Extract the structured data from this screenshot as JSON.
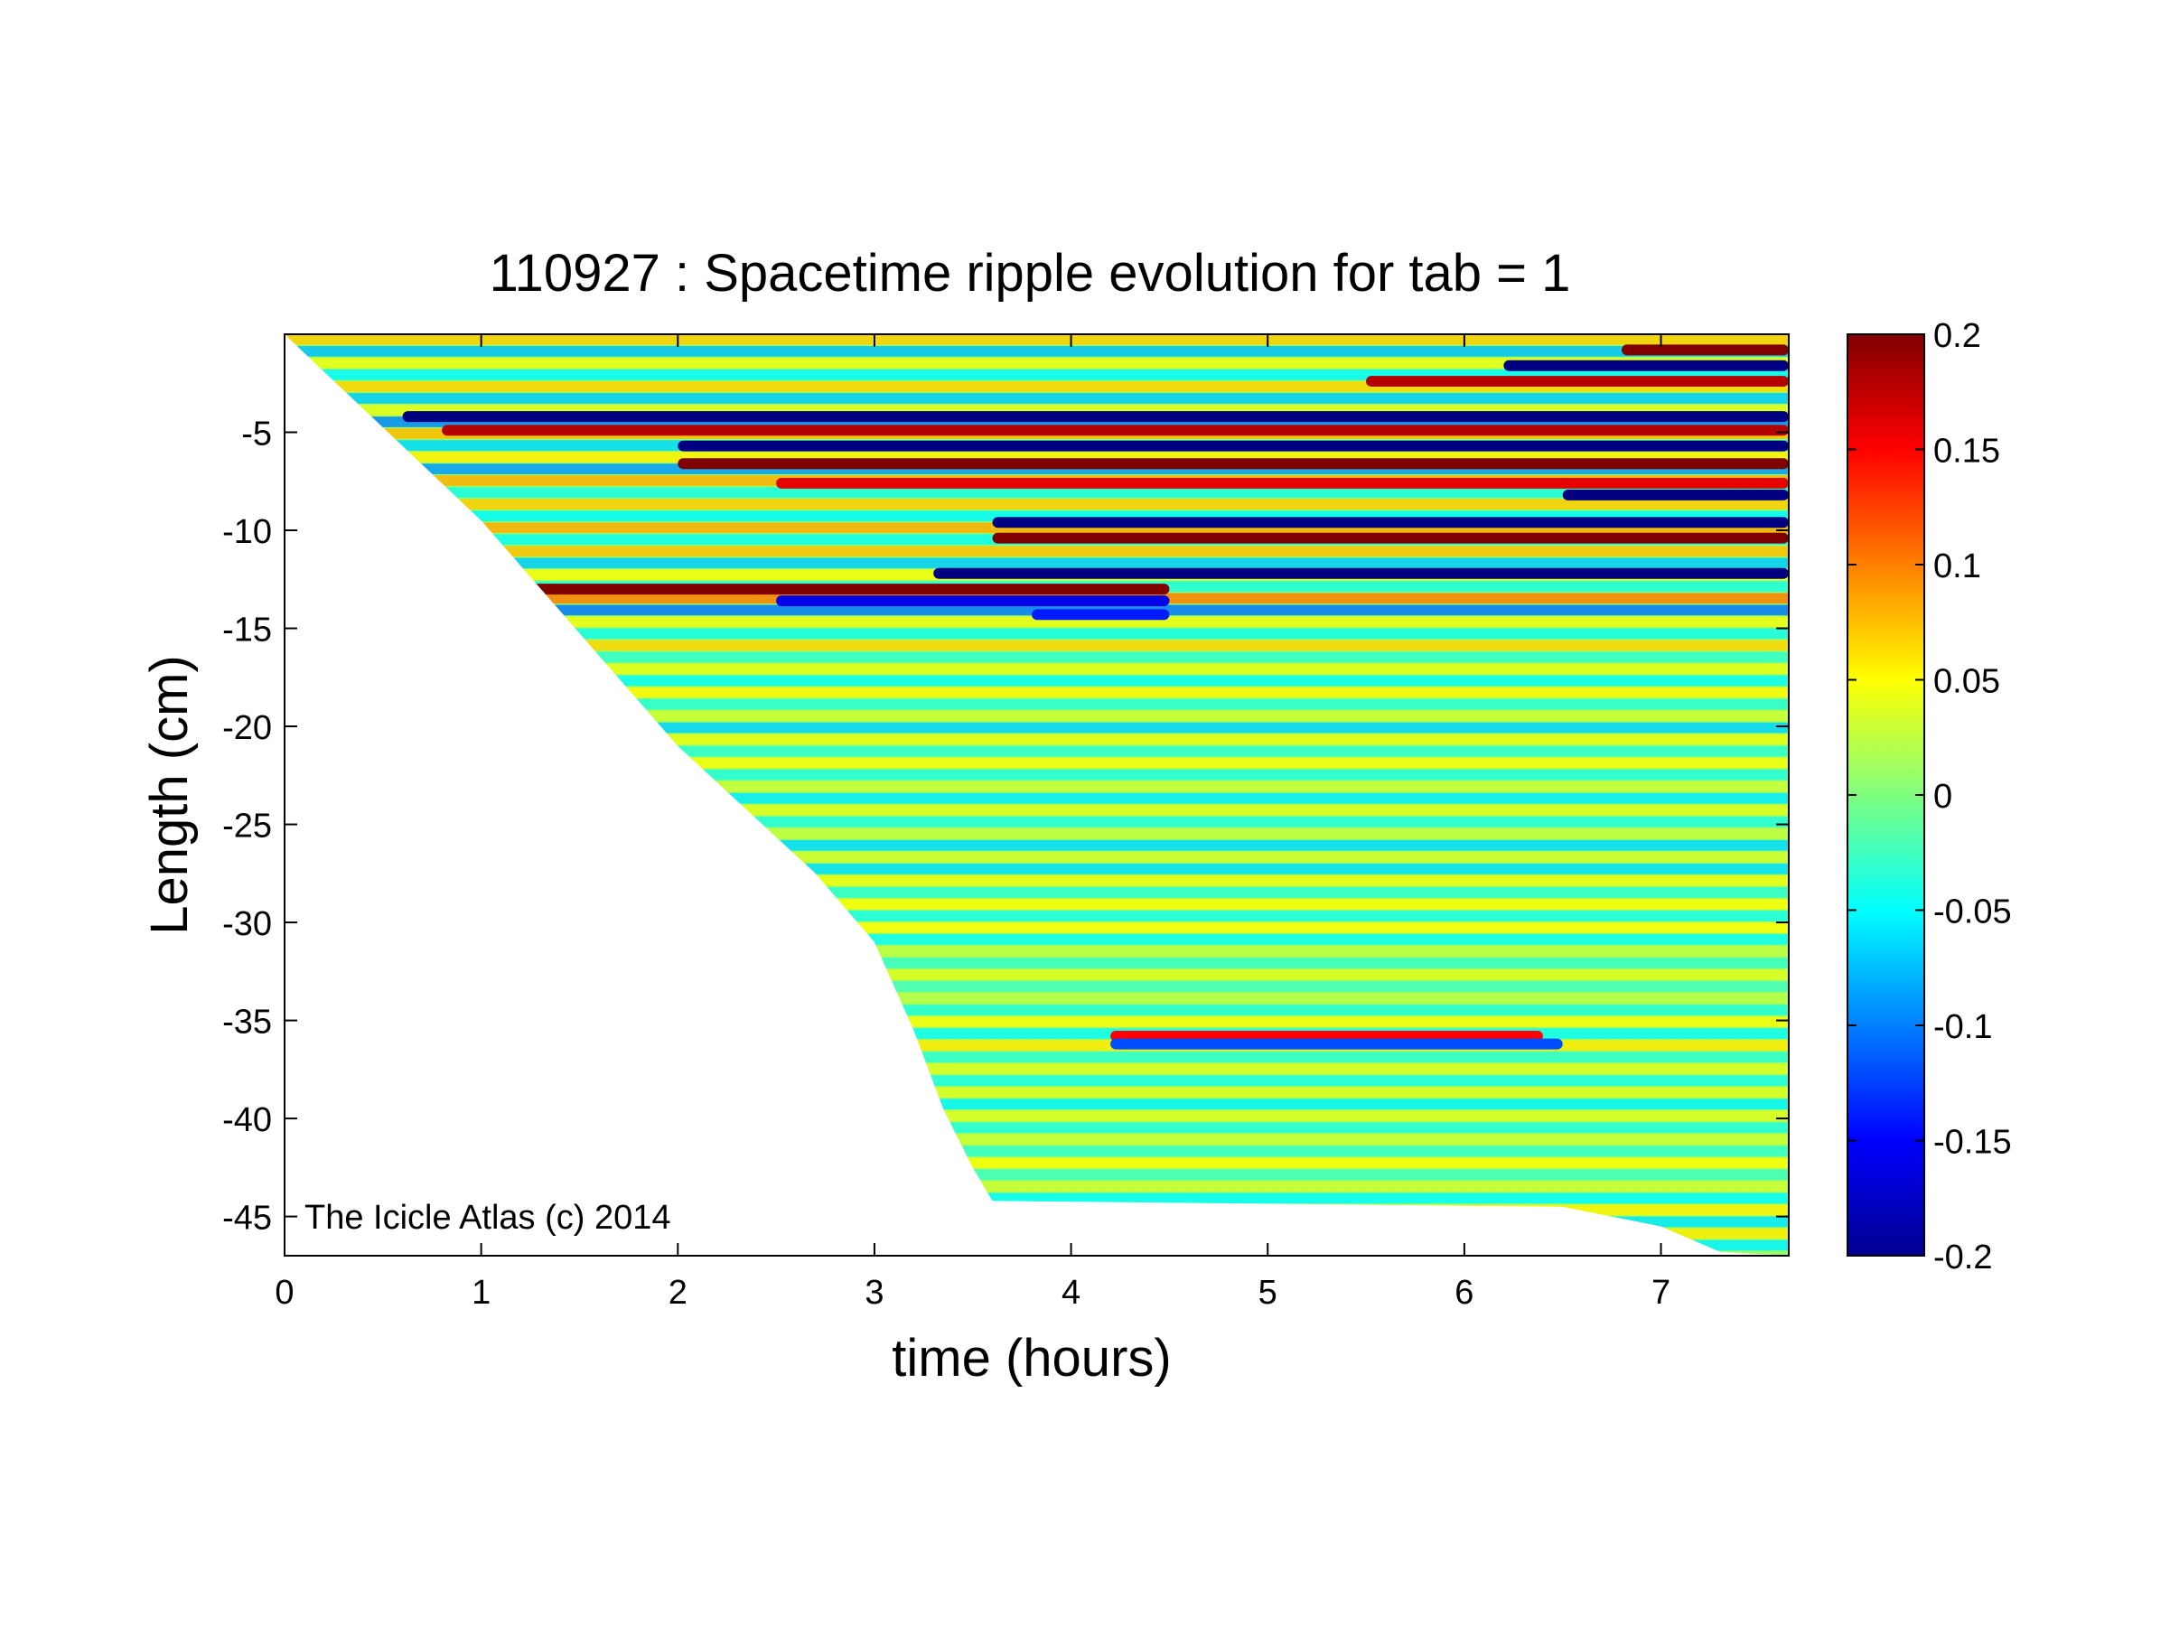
{
  "chart_data": {
    "type": "heatmap",
    "title": "110927 : Spacetime ripple evolution for tab = 1",
    "xlabel": "time (hours)",
    "ylabel": "Length (cm)",
    "xlim": [
      0,
      7.65
    ],
    "ylim": [
      -47,
      0
    ],
    "x_ticks": [
      0,
      1,
      2,
      3,
      4,
      5,
      6,
      7
    ],
    "y_ticks": [
      -5,
      -10,
      -15,
      -20,
      -25,
      -30,
      -35,
      -40,
      -45
    ],
    "colorbar": {
      "colormap": "jet",
      "clim": [
        -0.2,
        0.2
      ],
      "ticks": [
        0.2,
        0.15,
        0.1,
        0.05,
        0,
        -0.05,
        -0.1,
        -0.15,
        -0.2
      ]
    },
    "data_boundary_lower_edge": [
      [
        0,
        0
      ],
      [
        1,
        -9.5
      ],
      [
        2,
        -21
      ],
      [
        2.7,
        -27.5
      ],
      [
        3.0,
        -31
      ],
      [
        3.2,
        -35.5
      ],
      [
        3.35,
        -39.5
      ],
      [
        3.5,
        -42.5
      ],
      [
        3.6,
        -44.2
      ],
      [
        6.5,
        -44.5
      ],
      [
        7.0,
        -45.5
      ],
      [
        7.3,
        -46.8
      ],
      [
        7.65,
        -47
      ]
    ],
    "strong_bands": [
      {
        "y": -0.8,
        "x": [
          6.8,
          7.65
        ],
        "value": 0.2
      },
      {
        "y": -1.6,
        "x": [
          6.2,
          7.65
        ],
        "value": -0.2
      },
      {
        "y": -2.4,
        "x": [
          5.5,
          7.65
        ],
        "value": 0.18
      },
      {
        "y": -4.2,
        "x": [
          0.6,
          7.65
        ],
        "value": -0.2
      },
      {
        "y": -4.9,
        "x": [
          0.8,
          7.65
        ],
        "value": 0.18
      },
      {
        "y": -5.7,
        "x": [
          2.0,
          7.65
        ],
        "value": -0.2
      },
      {
        "y": -6.6,
        "x": [
          2.0,
          7.65
        ],
        "value": 0.2
      },
      {
        "y": -7.6,
        "x": [
          2.5,
          7.65
        ],
        "value": 0.16
      },
      {
        "y": -8.2,
        "x": [
          6.5,
          7.65
        ],
        "value": -0.2
      },
      {
        "y": -9.6,
        "x": [
          3.6,
          7.65
        ],
        "value": -0.2
      },
      {
        "y": -10.4,
        "x": [
          3.6,
          7.65
        ],
        "value": 0.2
      },
      {
        "y": -12.2,
        "x": [
          3.3,
          7.65
        ],
        "value": -0.2
      },
      {
        "y": -13.0,
        "x": [
          1.2,
          4.5
        ],
        "value": 0.2
      },
      {
        "y": -13.6,
        "x": [
          2.5,
          4.5
        ],
        "value": -0.16
      },
      {
        "y": -14.3,
        "x": [
          3.8,
          4.5
        ],
        "value": -0.14
      },
      {
        "y": -35.8,
        "x": [
          4.2,
          6.4
        ],
        "value": 0.15
      },
      {
        "y": -36.2,
        "x": [
          4.2,
          6.5
        ],
        "value": -0.12
      }
    ]
  },
  "watermark": "The Icicle Atlas (c) 2014"
}
